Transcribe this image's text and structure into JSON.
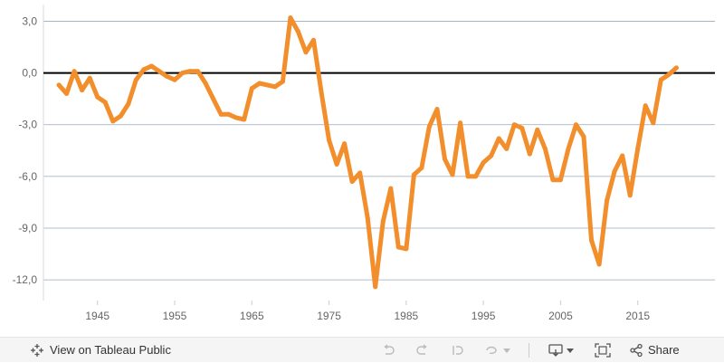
{
  "chart_data": {
    "type": "line",
    "title": "",
    "xlabel": "",
    "ylabel": "",
    "xlim": [
      1938,
      2025
    ],
    "ylim": [
      -13.2,
      3.6
    ],
    "y_ticks": [
      3.0,
      0.0,
      -3.0,
      -6.0,
      -9.0,
      -12.0
    ],
    "y_tick_labels": [
      "3,0",
      "0,0",
      "-3,0",
      "-6,0",
      "-9,0",
      "-12,0"
    ],
    "x_ticks": [
      1945,
      1955,
      1965,
      1975,
      1985,
      1995,
      2005,
      2015
    ],
    "x_tick_labels": [
      "1945",
      "1955",
      "1965",
      "1975",
      "1985",
      "1995",
      "2005",
      "2015"
    ],
    "zero_line": true,
    "grid": "horizontal",
    "legend": "none",
    "series": [
      {
        "color": "#f28e2b",
        "x": [
          1940,
          1941,
          1942,
          1943,
          1944,
          1945,
          1946,
          1947,
          1948,
          1949,
          1950,
          1951,
          1952,
          1953,
          1954,
          1955,
          1956,
          1957,
          1958,
          1959,
          1960,
          1961,
          1962,
          1963,
          1964,
          1965,
          1966,
          1967,
          1968,
          1969,
          1970,
          1971,
          1972,
          1973,
          1974,
          1975,
          1976,
          1977,
          1978,
          1979,
          1980,
          1981,
          1982,
          1983,
          1984,
          1985,
          1986,
          1987,
          1988,
          1989,
          1990,
          1991,
          1992,
          1993,
          1994,
          1995,
          1996,
          1997,
          1998,
          1999,
          2000,
          2001,
          2002,
          2003,
          2004,
          2005,
          2006,
          2007,
          2008,
          2009,
          2010,
          2011,
          2012,
          2013,
          2014,
          2015,
          2016,
          2017,
          2018,
          2019,
          2020
        ],
        "y": [
          -0.7,
          -1.2,
          0.1,
          -1.0,
          -0.3,
          -1.4,
          -1.7,
          -2.8,
          -2.5,
          -1.8,
          -0.4,
          0.2,
          0.4,
          0.1,
          -0.2,
          -0.4,
          0.0,
          0.1,
          0.1,
          -0.6,
          -1.5,
          -2.4,
          -2.4,
          -2.6,
          -2.7,
          -0.9,
          -0.6,
          -0.7,
          -0.8,
          -0.5,
          3.2,
          2.4,
          1.2,
          1.9,
          -1.1,
          -3.9,
          -5.3,
          -4.1,
          -6.3,
          -5.8,
          -8.4,
          -12.4,
          -8.6,
          -6.7,
          -10.1,
          -10.2,
          -5.9,
          -5.5,
          -3.1,
          -2.1,
          -5.0,
          -5.9,
          -2.9,
          -6.0,
          -6.0,
          -5.2,
          -4.8,
          -3.8,
          -4.4,
          -3.0,
          -3.2,
          -4.7,
          -3.3,
          -4.4,
          -6.2,
          -6.2,
          -4.4,
          -3.0,
          -3.7,
          -9.7,
          -11.1,
          -7.4,
          -5.7,
          -4.8,
          -7.1,
          -4.4,
          -1.9,
          -2.9,
          -0.4,
          -0.1,
          0.3
        ]
      }
    ]
  },
  "toolbar": {
    "view_label": "View on Tableau Public",
    "share_label": "Share",
    "icons": [
      "tableau-icon",
      "undo-icon",
      "redo-icon",
      "revert-icon",
      "refresh-icon",
      "pause-dropdown-icon",
      "download-icon",
      "fullscreen-icon",
      "share-icon"
    ],
    "accent_color": "#f28e2b"
  }
}
